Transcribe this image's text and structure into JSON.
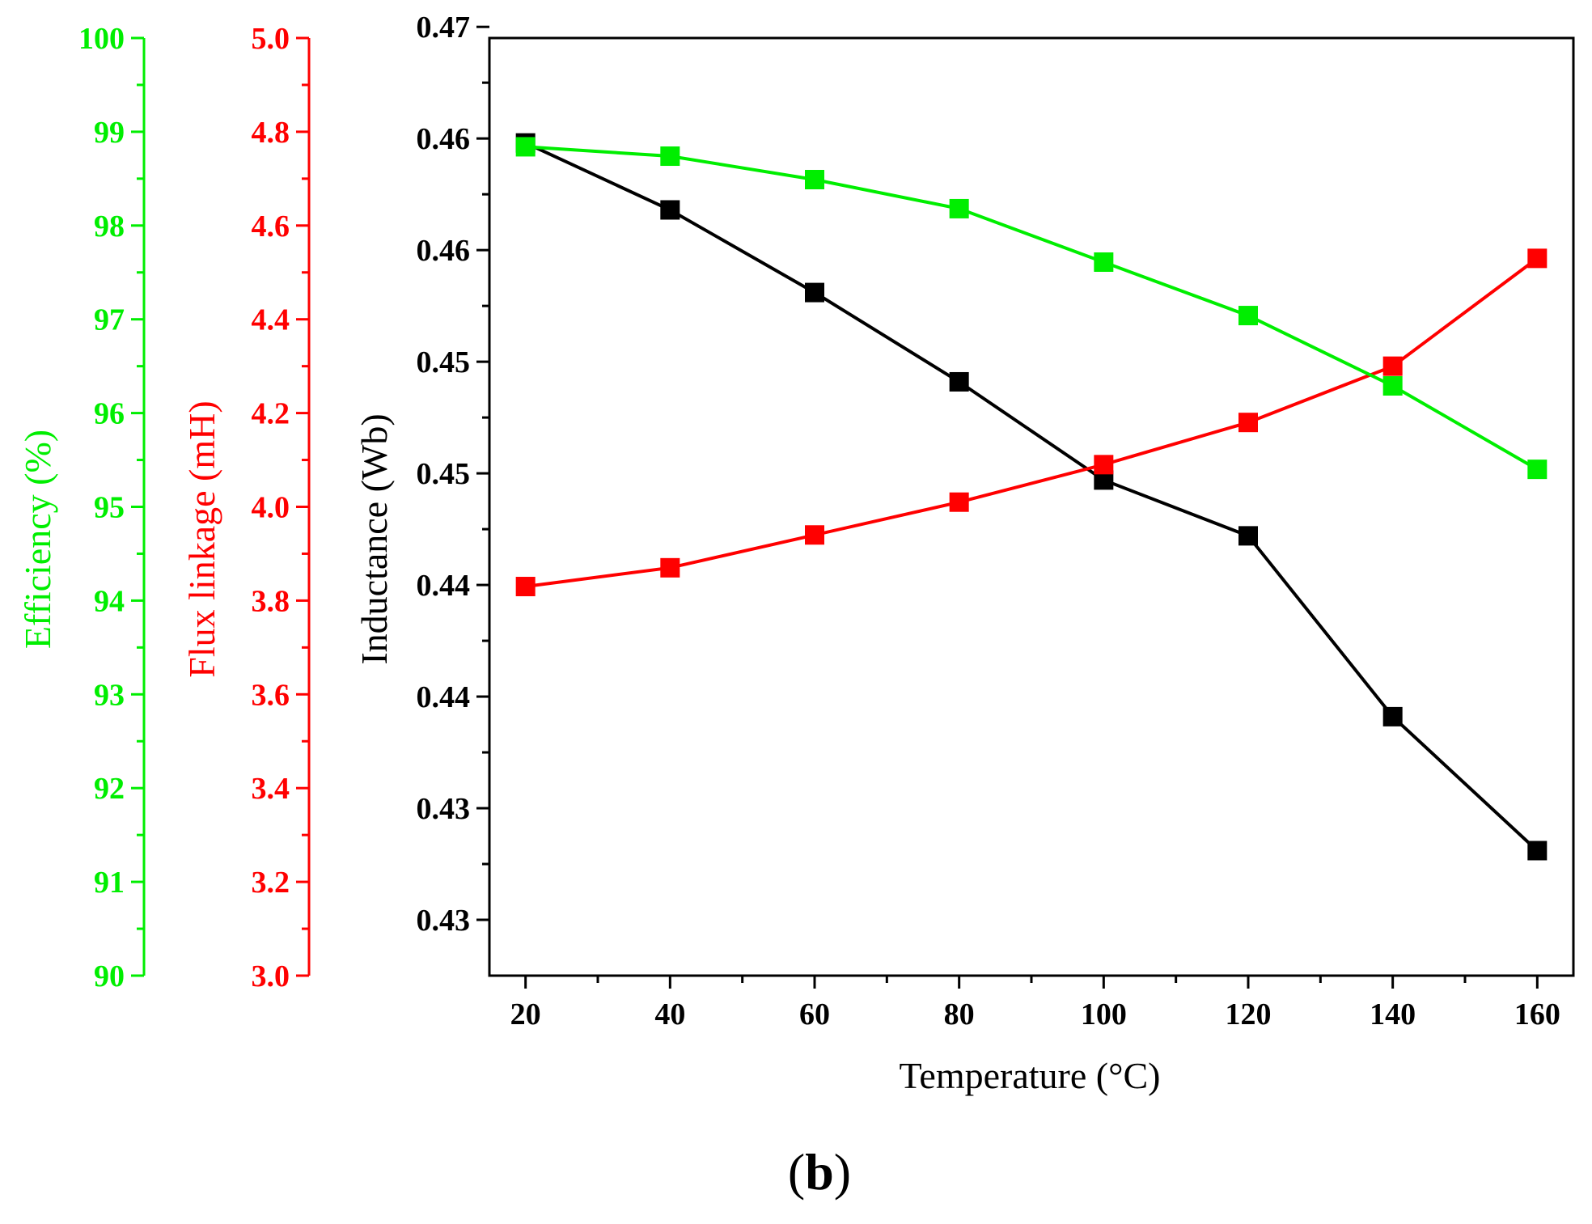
{
  "chart_data": {
    "type": "line",
    "panel_label": {
      "open": "(",
      "letter": "b",
      "close": ")"
    },
    "x": [
      20,
      40,
      60,
      80,
      100,
      120,
      140,
      160
    ],
    "xlabel": "Temperature (°C)",
    "xlim": [
      15,
      165
    ],
    "x_ticks": [
      20,
      40,
      60,
      80,
      100,
      120,
      140,
      160
    ],
    "axes": [
      {
        "id": "inductance",
        "label": "Inductance (Wb)",
        "color": "#000000",
        "position": "main-left",
        "ylim": [
          0.4275,
          0.4695
        ],
        "tick_values": [
          0.43,
          0.435,
          0.44,
          0.445,
          0.45,
          0.455,
          0.46,
          0.465,
          0.47
        ],
        "tick_labels": [
          "0.43",
          "0.43",
          "0.44",
          "0.44",
          "0.45",
          "0.45",
          "0.46",
          "0.46",
          "0.47"
        ]
      },
      {
        "id": "flux",
        "label": "Flux linkage (mH)",
        "color": "#ff0000",
        "position": "offset-left-inner",
        "ylim": [
          3.0,
          5.0
        ],
        "tick_values": [
          3.0,
          3.2,
          3.4,
          3.6,
          3.8,
          4.0,
          4.2,
          4.4,
          4.6,
          4.8,
          5.0
        ],
        "tick_labels": [
          "3.0",
          "3.2",
          "3.4",
          "3.6",
          "3.8",
          "4.0",
          "4.2",
          "4.4",
          "4.6",
          "4.8",
          "5.0"
        ]
      },
      {
        "id": "efficiency",
        "label": "Efficiency (%)",
        "color": "#00ee00",
        "position": "offset-left-outer",
        "ylim": [
          90,
          100
        ],
        "tick_values": [
          90,
          91,
          92,
          93,
          94,
          95,
          96,
          97,
          98,
          99,
          100
        ],
        "tick_labels": [
          "90",
          "91",
          "92",
          "93",
          "94",
          "95",
          "96",
          "97",
          "98",
          "99",
          "100"
        ]
      }
    ],
    "series": [
      {
        "name": "Inductance",
        "axis": "inductance",
        "color": "#000000",
        "values": [
          0.4648,
          0.4618,
          0.4581,
          0.4541,
          0.4497,
          0.4472,
          0.4391,
          0.4331
        ]
      },
      {
        "name": "Flux linkage",
        "axis": "flux",
        "color": "#ff0000",
        "values": [
          3.83,
          3.87,
          3.94,
          4.01,
          4.09,
          4.18,
          4.3,
          4.53
        ]
      },
      {
        "name": "Efficiency",
        "axis": "efficiency",
        "color": "#00ee00",
        "values": [
          98.84,
          98.74,
          98.49,
          98.18,
          97.61,
          97.04,
          96.29,
          95.4
        ]
      }
    ]
  }
}
